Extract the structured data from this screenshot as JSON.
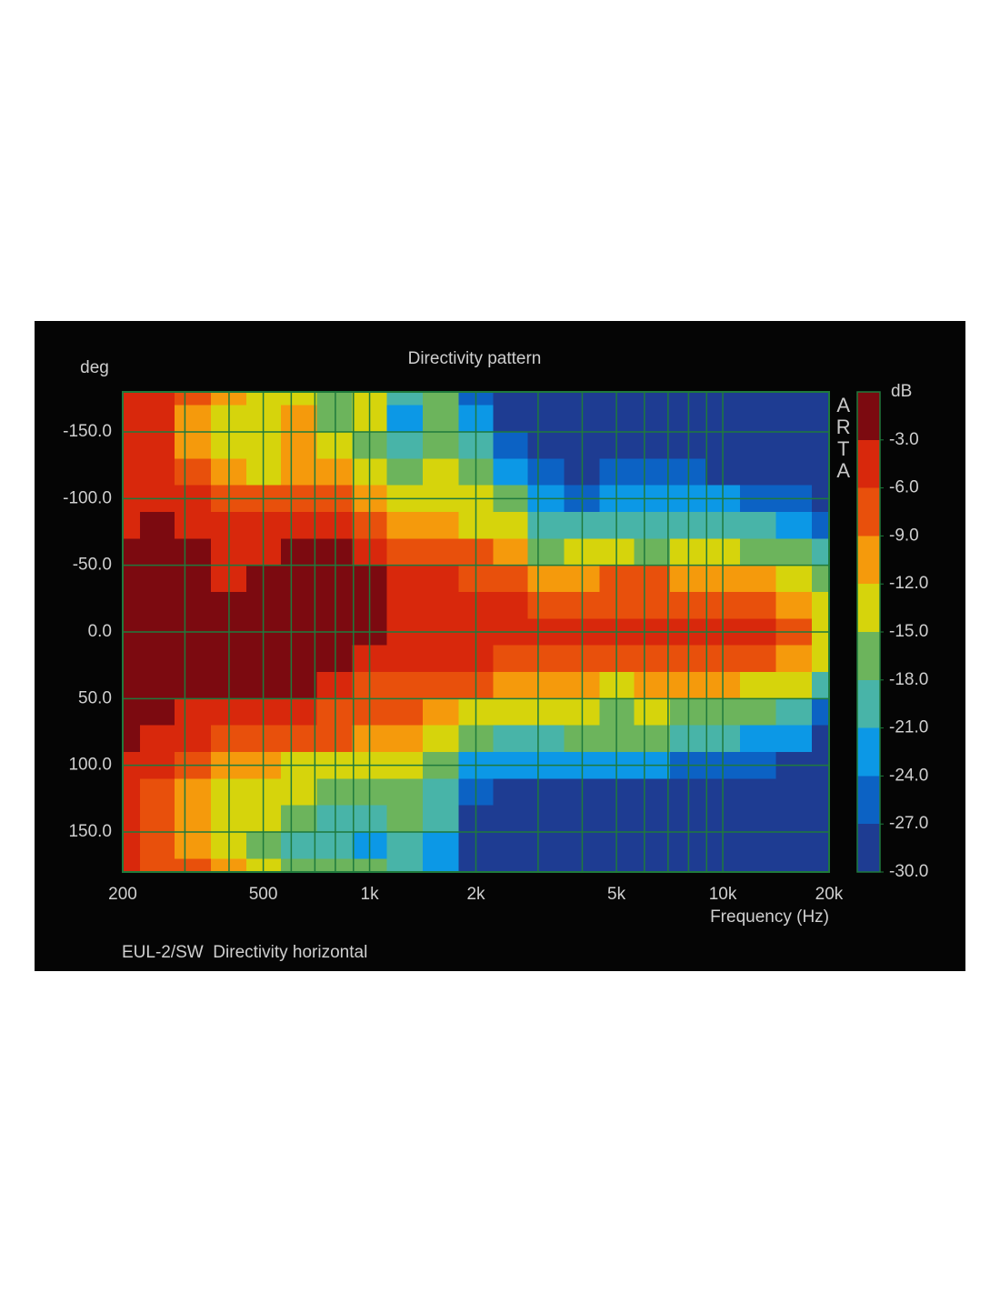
{
  "chart_data": {
    "type": "contour",
    "title": "Directivity pattern",
    "ylabel": "deg",
    "xlabel": "Frequency (Hz)",
    "footer": "EUL-2/SW  Directivity horizontal",
    "watermark": "ARTA",
    "colorbar_label": "dB",
    "x_log": true,
    "y_inverted": true,
    "grid": true,
    "xlim": [
      200,
      20000
    ],
    "ylim": [
      -180,
      180
    ],
    "xticks": [
      200,
      500,
      {
        "value": 1000,
        "label": "1k"
      },
      {
        "value": 2000,
        "label": "2k"
      },
      {
        "value": 5000,
        "label": "5k"
      },
      {
        "value": 10000,
        "label": "10k"
      },
      {
        "value": 20000,
        "label": "20k"
      }
    ],
    "x_minor_ticks": [
      300,
      400,
      600,
      700,
      800,
      900,
      3000,
      4000,
      6000,
      7000,
      8000,
      9000
    ],
    "yticks": [
      {
        "value": -150,
        "label": "-150.0"
      },
      {
        "value": -100,
        "label": "-100.0"
      },
      {
        "value": -50,
        "label": "-50.0"
      },
      {
        "value": 0,
        "label": "0.0"
      },
      {
        "value": 50,
        "label": "50.0"
      },
      {
        "value": 100,
        "label": "100.0"
      },
      {
        "value": 150,
        "label": "150.0"
      }
    ],
    "clim": [
      -30,
      0
    ],
    "cticks": [
      {
        "value": -3,
        "label": "-3.0"
      },
      {
        "value": -6,
        "label": "-6.0"
      },
      {
        "value": -9,
        "label": "-9.0"
      },
      {
        "value": -12,
        "label": "-12.0"
      },
      {
        "value": -15,
        "label": "-15.0"
      },
      {
        "value": -18,
        "label": "-18.0"
      },
      {
        "value": -21,
        "label": "-21.0"
      },
      {
        "value": -24,
        "label": "-24.0"
      },
      {
        "value": -27,
        "label": "-27.0"
      },
      {
        "value": -30,
        "label": "-30.0"
      }
    ],
    "level_step": 3,
    "colors": [
      "#7c0a10",
      "#d8280c",
      "#e8500c",
      "#f59a0c",
      "#d6d40c",
      "#6cb45c",
      "#48b4a8",
      "#0c98e6",
      "#0c62c4",
      "#1e3c92"
    ],
    "background": "#223090",
    "x": [
      200,
      250,
      315,
      400,
      500,
      630,
      800,
      1000,
      1250,
      1600,
      2000,
      2500,
      3150,
      4000,
      5000,
      6300,
      8000,
      10000,
      12500,
      16000,
      20000
    ],
    "y": [
      -180,
      -160,
      -140,
      -120,
      -100,
      -80,
      -60,
      -40,
      -20,
      0,
      20,
      40,
      60,
      80,
      100,
      120,
      140,
      160,
      180
    ],
    "z": [
      [
        -4,
        -4,
        -5,
        -5,
        -5,
        -4,
        -2,
        -1,
        -1,
        -1,
        -1,
        -1,
        -1,
        -2,
        -5,
        -5,
        -5,
        -5,
        -5
      ],
      [
        -5,
        -5,
        -5,
        -5,
        -4,
        -2,
        -1,
        -1,
        -1,
        -1,
        -1,
        -1,
        -1,
        -4,
        -5,
        -6.5,
        -7,
        -7,
        -7
      ],
      [
        -8,
        -10,
        -10,
        -8,
        -5,
        -4,
        -2,
        -1,
        -1,
        -1,
        -1,
        -2,
        -4,
        -5,
        -7,
        -10,
        -11,
        -10,
        -8
      ],
      [
        -11,
        -13,
        -14,
        -11,
        -7,
        -5,
        -4,
        -4,
        -1,
        -1,
        -1,
        -2,
        -5,
        -7,
        -10,
        -13,
        -14,
        -13,
        -10
      ],
      [
        -12,
        -13,
        -14,
        -13,
        -8,
        -5,
        -4,
        -2,
        -1,
        -1,
        -1,
        -2,
        -5,
        -7,
        -9,
        -12,
        -14,
        -16,
        -14
      ],
      [
        -13,
        -11,
        -10,
        -9,
        -7,
        -5,
        -2,
        -1,
        -1,
        -1,
        -1,
        -2,
        -5,
        -6,
        -12,
        -13,
        -16,
        -18,
        -16
      ],
      [
        -16,
        -16,
        -12,
        -10,
        -7,
        -5,
        -1,
        -1,
        -1,
        -1,
        -2,
        -4,
        -6,
        -8,
        -14,
        -17,
        -18,
        -20,
        -17
      ],
      [
        -14,
        -13,
        -15,
        -13,
        -10,
        -7,
        -5,
        -2,
        -2,
        -2,
        -4,
        -6,
        -7,
        -9,
        -13,
        -15,
        -18,
        -22,
        -17
      ],
      [
        -19,
        -21,
        -19,
        -16,
        -13,
        -10,
        -7,
        -5,
        -4,
        -4,
        -4,
        -6,
        -8,
        -10,
        -13,
        -15,
        -17,
        -19,
        -18
      ],
      [
        -17,
        -17,
        -16,
        -14,
        -12,
        -9,
        -6,
        -5,
        -4,
        -4,
        -5,
        -7,
        -9,
        -12,
        -15,
        -18,
        -20,
        -22,
        -21
      ],
      [
        -25,
        -23,
        -20,
        -17,
        -14,
        -12,
        -8,
        -6,
        -4,
        -4,
        -5,
        -8,
        -12,
        -16,
        -22,
        -26,
        -27,
        -28,
        -27
      ],
      [
        -29,
        -28,
        -26,
        -23,
        -17,
        -14,
        -11,
        -7,
        -5,
        -4,
        -6,
        -10,
        -14,
        -19,
        -22,
        -28,
        -28,
        -29,
        -29
      ],
      [
        -29,
        -29,
        -28,
        -25,
        -22,
        -18,
        -15,
        -11,
        -8,
        -5,
        -8,
        -11,
        -14,
        -18,
        -23,
        -28,
        -29,
        -29,
        -29
      ],
      [
        -30,
        -30,
        -29,
        -27,
        -24,
        -19,
        -14,
        -10,
        -7,
        -4,
        -7,
        -10,
        -14,
        -17,
        -22,
        -28,
        -29,
        -28,
        -30
      ],
      [
        -30,
        -30,
        -29,
        -26,
        -22,
        -18,
        -14,
        -8,
        -6,
        -4,
        -8,
        -12,
        -15,
        -17,
        -23,
        -29,
        -30,
        -30,
        -30
      ],
      [
        -30,
        -30,
        -29,
        -25,
        -22,
        -19,
        -15,
        -8,
        -6,
        -5,
        -7,
        -11,
        -14,
        -17,
        -23,
        -28,
        -30,
        -30,
        -30
      ],
      [
        -30,
        -30,
        -30,
        -26,
        -22,
        -19,
        -14,
        -9,
        -6,
        -5,
        -7,
        -10,
        -15,
        -19,
        -24,
        -29,
        -30,
        -30,
        -30
      ],
      [
        -30,
        -30,
        -30,
        -27,
        -23,
        -19,
        -14,
        -9,
        -6,
        -5,
        -7,
        -10,
        -15,
        -19,
        -24,
        -29,
        -30,
        -30,
        -30
      ],
      [
        -30,
        -30,
        -30,
        -28,
        -24,
        -20,
        -16,
        -11,
        -7,
        -5,
        -7,
        -12,
        -17,
        -21,
        -24,
        -29,
        -30,
        -30,
        -30
      ],
      [
        -30,
        -30,
        -30,
        -29,
        -26,
        -22,
        -17,
        -13,
        -10,
        -8,
        -10,
        -14,
        -20,
        -23,
        -27,
        -29,
        -30,
        -30,
        -30
      ],
      [
        -30,
        -30,
        -30,
        -30,
        -28,
        -25,
        -20,
        -17,
        -13,
        -12,
        -14,
        -20,
        -24,
        -27,
        -29,
        -30,
        -30,
        -30,
        -30
      ]
    ]
  }
}
